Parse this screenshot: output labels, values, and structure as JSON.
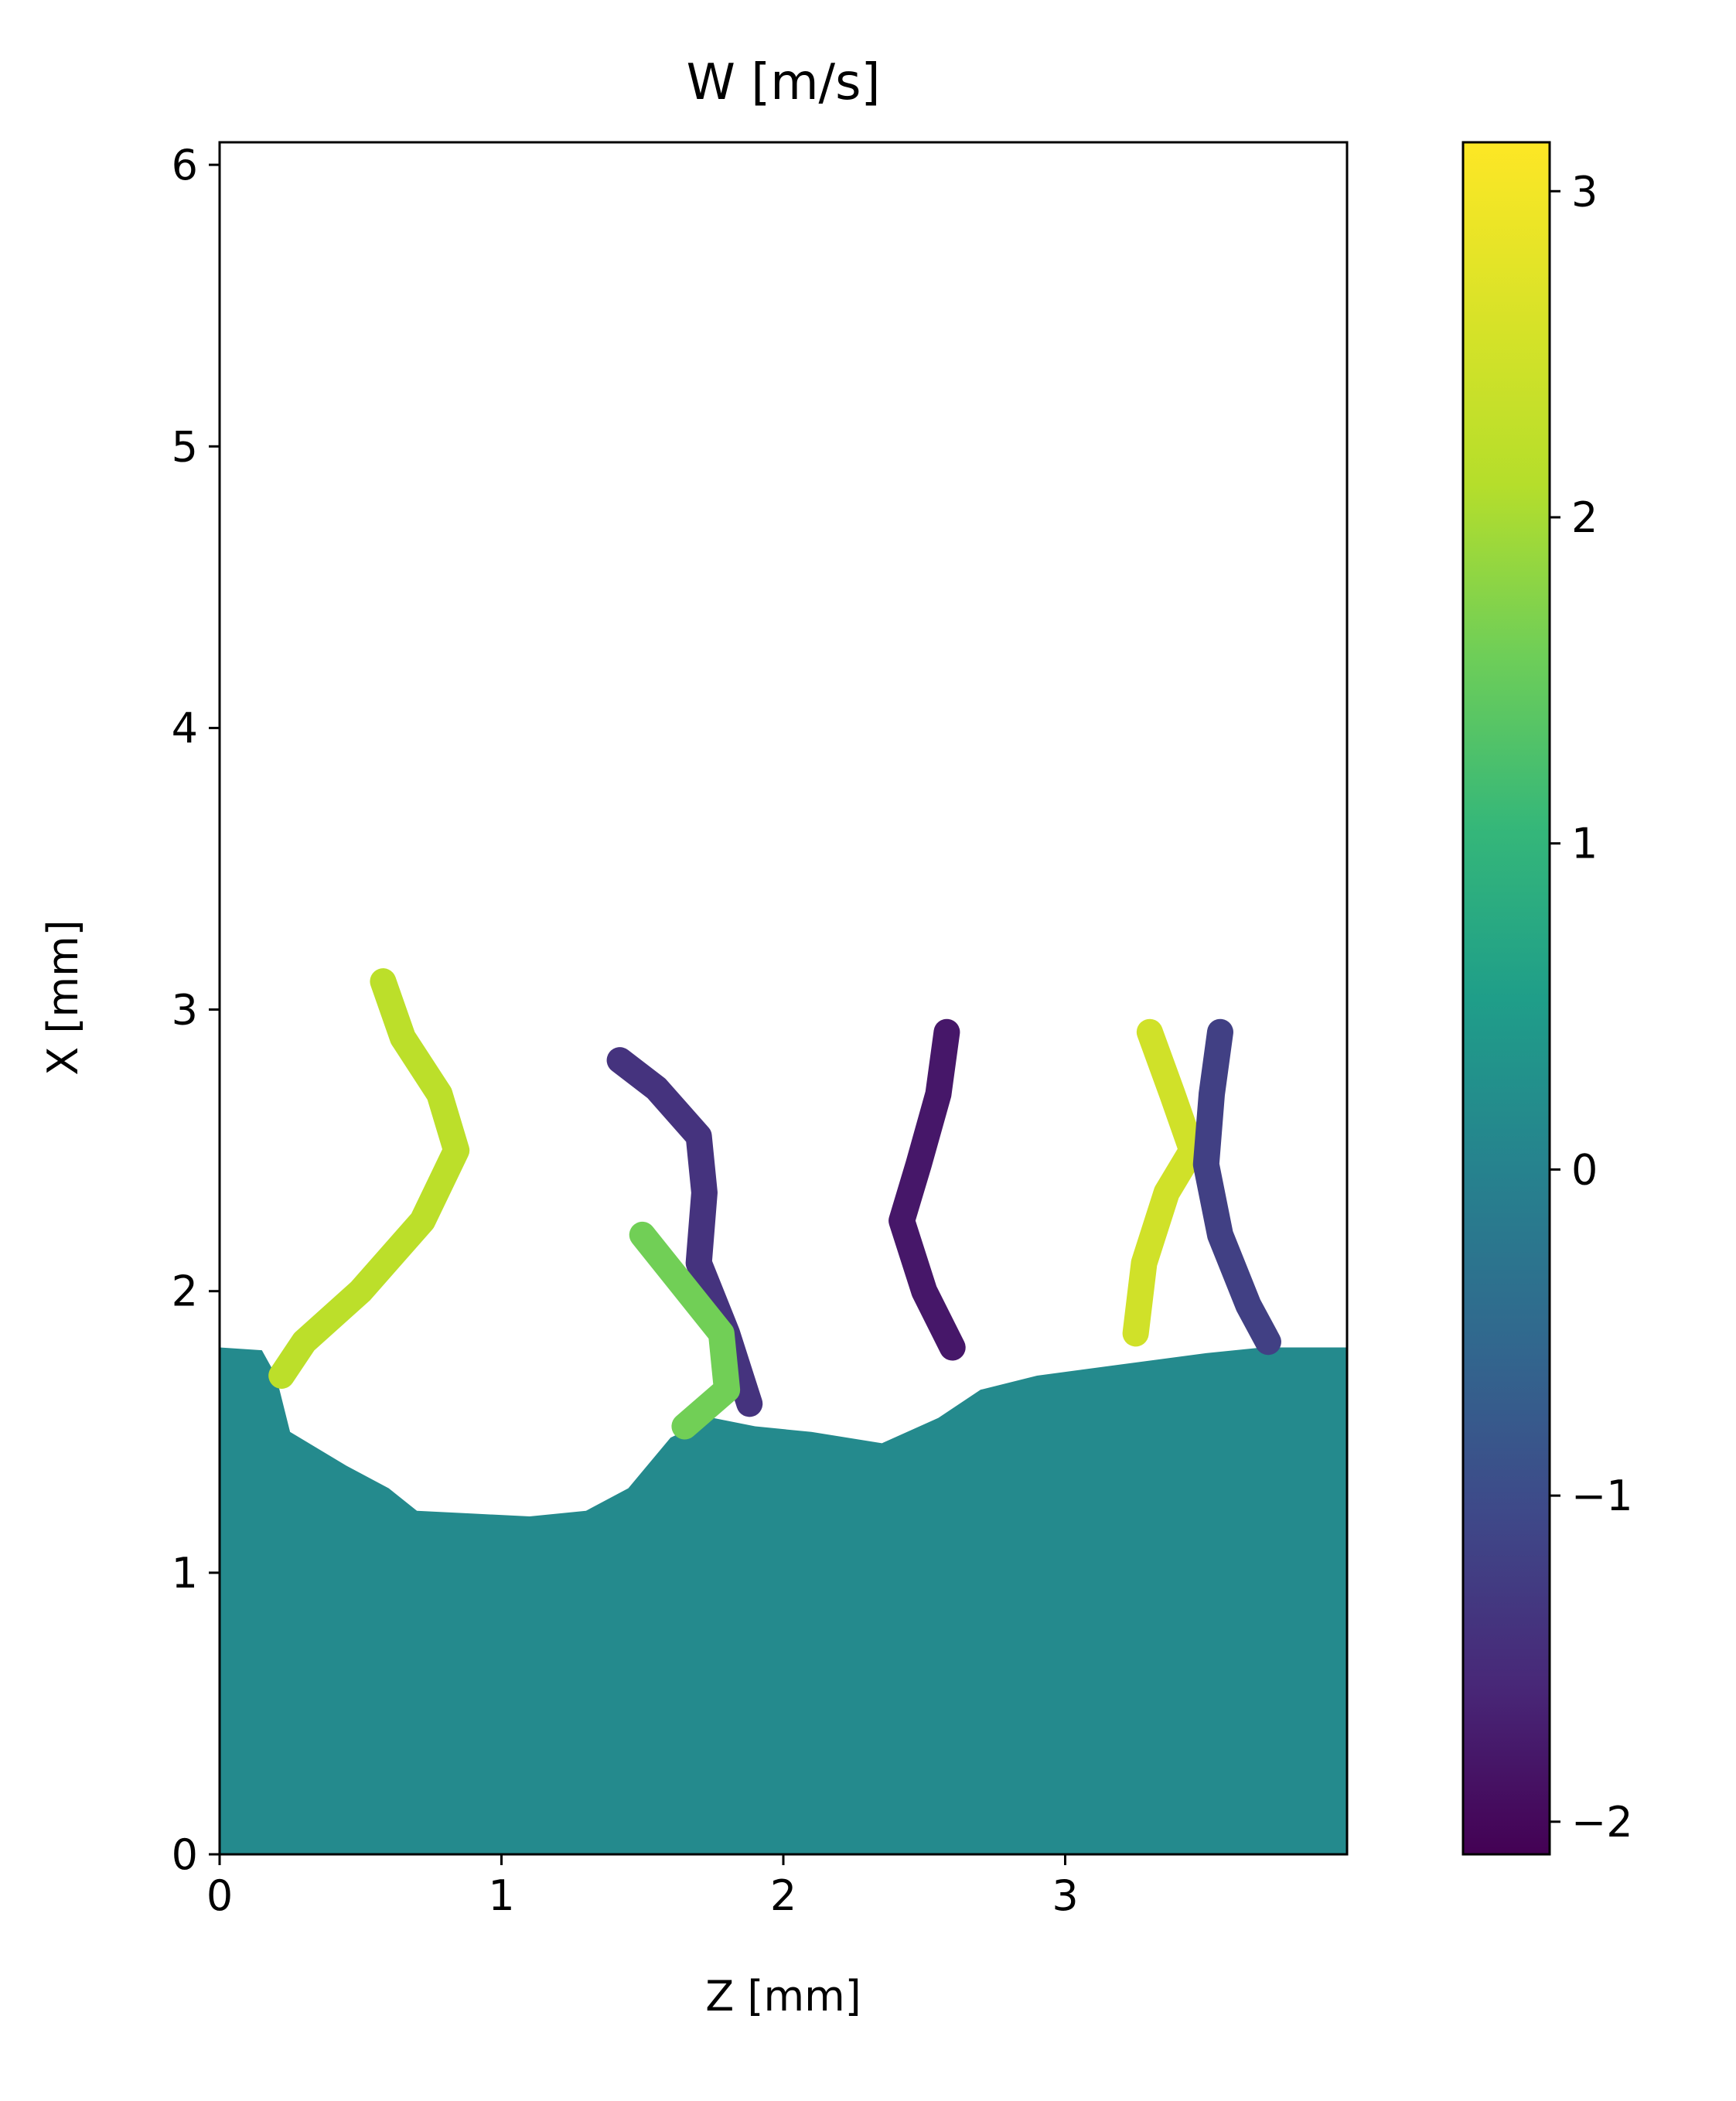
{
  "chart_data": {
    "type": "heatmap",
    "title": "W [m/s]",
    "xlabel": "Z [mm]",
    "ylabel": "X [mm]",
    "xlim": [
      0,
      4.0
    ],
    "ylim": [
      0,
      6.08
    ],
    "xticks": [
      0,
      1,
      2,
      3
    ],
    "xtick_labels": [
      "0",
      "1",
      "2",
      "3"
    ],
    "yticks": [
      0,
      1,
      2,
      3,
      4,
      5,
      6
    ],
    "ytick_labels": [
      "0",
      "1",
      "2",
      "3",
      "4",
      "5",
      "6"
    ],
    "colorbar": {
      "colormap": "viridis",
      "range": [
        -2.1,
        3.15
      ],
      "ticks": [
        -2,
        -1,
        0,
        1,
        2,
        3
      ],
      "tick_labels": [
        "−2",
        "−1",
        "0",
        "1",
        "2",
        "3"
      ]
    },
    "background_value": 0.15,
    "fluid_surface": [
      [
        0.0,
        1.8
      ],
      [
        0.15,
        1.79
      ],
      [
        0.2,
        1.7
      ],
      [
        0.25,
        1.5
      ],
      [
        0.45,
        1.38
      ],
      [
        0.6,
        1.3
      ],
      [
        0.7,
        1.22
      ],
      [
        0.9,
        1.21
      ],
      [
        1.1,
        1.2
      ],
      [
        1.3,
        1.22
      ],
      [
        1.45,
        1.3
      ],
      [
        1.6,
        1.48
      ],
      [
        1.75,
        1.55
      ],
      [
        1.9,
        1.52
      ],
      [
        2.1,
        1.5
      ],
      [
        2.35,
        1.46
      ],
      [
        2.55,
        1.55
      ],
      [
        2.7,
        1.65
      ],
      [
        2.9,
        1.7
      ],
      [
        3.2,
        1.74
      ],
      [
        3.5,
        1.78
      ],
      [
        3.7,
        1.8
      ],
      [
        4.0,
        1.8
      ]
    ],
    "jets": [
      {
        "w": 2.2,
        "points": [
          [
            0.58,
            3.1
          ],
          [
            0.65,
            2.9
          ],
          [
            0.78,
            2.7
          ],
          [
            0.84,
            2.5
          ],
          [
            0.72,
            2.25
          ],
          [
            0.5,
            2.0
          ],
          [
            0.3,
            1.82
          ],
          [
            0.22,
            1.7
          ]
        ]
      },
      {
        "w": -1.4,
        "points": [
          [
            1.42,
            2.82
          ],
          [
            1.55,
            2.72
          ],
          [
            1.7,
            2.55
          ],
          [
            1.72,
            2.35
          ],
          [
            1.7,
            2.1
          ],
          [
            1.8,
            1.85
          ],
          [
            1.88,
            1.6
          ]
        ]
      },
      {
        "w": 1.6,
        "points": [
          [
            1.5,
            2.2
          ],
          [
            1.62,
            2.05
          ],
          [
            1.78,
            1.85
          ],
          [
            1.8,
            1.65
          ],
          [
            1.65,
            1.52
          ]
        ]
      },
      {
        "w": -1.8,
        "points": [
          [
            2.58,
            2.92
          ],
          [
            2.55,
            2.7
          ],
          [
            2.48,
            2.45
          ],
          [
            2.42,
            2.25
          ],
          [
            2.5,
            2.0
          ],
          [
            2.6,
            1.8
          ]
        ]
      },
      {
        "w": 2.5,
        "points": [
          [
            3.3,
            2.92
          ],
          [
            3.38,
            2.7
          ],
          [
            3.45,
            2.5
          ],
          [
            3.36,
            2.35
          ],
          [
            3.28,
            2.1
          ],
          [
            3.25,
            1.85
          ]
        ]
      },
      {
        "w": -1.2,
        "points": [
          [
            3.55,
            2.92
          ],
          [
            3.52,
            2.7
          ],
          [
            3.5,
            2.45
          ],
          [
            3.55,
            2.2
          ],
          [
            3.65,
            1.95
          ],
          [
            3.72,
            1.82
          ]
        ]
      }
    ]
  }
}
